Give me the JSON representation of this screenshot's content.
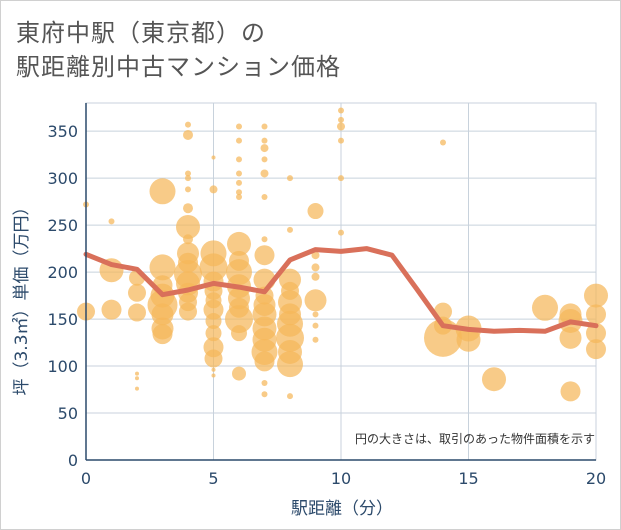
{
  "chart_data": {
    "type": "scatter",
    "title": [
      "東府中駅（東京都）の",
      "駅距離別中古マンション価格"
    ],
    "xlabel": "駅距離（分）",
    "ylabel": "坪（3.3㎡）単価（万円）",
    "xlim": [
      0,
      20
    ],
    "ylim": [
      0,
      380
    ],
    "xticks": [
      "0",
      "5",
      "10",
      "15",
      "20"
    ],
    "yticks": [
      "0",
      "50",
      "100",
      "150",
      "200",
      "250",
      "300",
      "350"
    ],
    "annotation": "円の大きさは、取引のあった物件面積を示す",
    "grid": true,
    "colors": {
      "bubble": "#f5b75a",
      "line": "#d9705a",
      "grid": "#c8d2dc",
      "axis": "#2c4a6b"
    },
    "average_line": {
      "x": [
        0,
        1,
        2,
        3,
        4,
        5,
        6,
        7,
        8,
        9,
        10,
        11,
        12,
        13,
        14,
        15,
        16,
        17,
        18,
        19,
        20
      ],
      "y": [
        219,
        208,
        203,
        176,
        181,
        188,
        184,
        179,
        213,
        224,
        222,
        225,
        218,
        181,
        143,
        139,
        137,
        138,
        137,
        147,
        143
      ]
    },
    "points": [
      {
        "x": 0,
        "y": 272,
        "s": 3
      },
      {
        "x": 0,
        "y": 158,
        "s": 9
      },
      {
        "x": 1,
        "y": 254,
        "s": 3
      },
      {
        "x": 1,
        "y": 202,
        "s": 12
      },
      {
        "x": 1,
        "y": 160,
        "s": 10
      },
      {
        "x": 2,
        "y": 194,
        "s": 8
      },
      {
        "x": 2,
        "y": 178,
        "s": 9
      },
      {
        "x": 2,
        "y": 157,
        "s": 9
      },
      {
        "x": 2,
        "y": 92,
        "s": 2
      },
      {
        "x": 2,
        "y": 87,
        "s": 2
      },
      {
        "x": 2,
        "y": 76,
        "s": 2
      },
      {
        "x": 3,
        "y": 286,
        "s": 13
      },
      {
        "x": 3,
        "y": 205,
        "s": 13
      },
      {
        "x": 3,
        "y": 186,
        "s": 10
      },
      {
        "x": 3,
        "y": 175,
        "s": 12
      },
      {
        "x": 3,
        "y": 165,
        "s": 15
      },
      {
        "x": 3,
        "y": 155,
        "s": 11
      },
      {
        "x": 3,
        "y": 140,
        "s": 11
      },
      {
        "x": 3,
        "y": 134,
        "s": 10
      },
      {
        "x": 4,
        "y": 357,
        "s": 3
      },
      {
        "x": 4,
        "y": 346,
        "s": 5
      },
      {
        "x": 4,
        "y": 305,
        "s": 3
      },
      {
        "x": 4,
        "y": 300,
        "s": 3
      },
      {
        "x": 4,
        "y": 288,
        "s": 3
      },
      {
        "x": 4,
        "y": 268,
        "s": 5
      },
      {
        "x": 4,
        "y": 248,
        "s": 12
      },
      {
        "x": 4,
        "y": 235,
        "s": 5
      },
      {
        "x": 4,
        "y": 220,
        "s": 11
      },
      {
        "x": 4,
        "y": 210,
        "s": 10
      },
      {
        "x": 4,
        "y": 198,
        "s": 14
      },
      {
        "x": 4,
        "y": 188,
        "s": 12
      },
      {
        "x": 4,
        "y": 178,
        "s": 10
      },
      {
        "x": 4,
        "y": 168,
        "s": 9
      },
      {
        "x": 4,
        "y": 158,
        "s": 9
      },
      {
        "x": 5,
        "y": 322,
        "s": 2
      },
      {
        "x": 5,
        "y": 288,
        "s": 4
      },
      {
        "x": 5,
        "y": 220,
        "s": 13
      },
      {
        "x": 5,
        "y": 205,
        "s": 14
      },
      {
        "x": 5,
        "y": 190,
        "s": 10
      },
      {
        "x": 5,
        "y": 180,
        "s": 9
      },
      {
        "x": 5,
        "y": 170,
        "s": 8
      },
      {
        "x": 5,
        "y": 160,
        "s": 10
      },
      {
        "x": 5,
        "y": 148,
        "s": 8
      },
      {
        "x": 5,
        "y": 135,
        "s": 8
      },
      {
        "x": 5,
        "y": 120,
        "s": 10
      },
      {
        "x": 5,
        "y": 108,
        "s": 9
      },
      {
        "x": 5,
        "y": 96,
        "s": 2
      },
      {
        "x": 5,
        "y": 90,
        "s": 2
      },
      {
        "x": 6,
        "y": 355,
        "s": 3
      },
      {
        "x": 6,
        "y": 340,
        "s": 3
      },
      {
        "x": 6,
        "y": 320,
        "s": 3
      },
      {
        "x": 6,
        "y": 305,
        "s": 3
      },
      {
        "x": 6,
        "y": 295,
        "s": 3
      },
      {
        "x": 6,
        "y": 285,
        "s": 3
      },
      {
        "x": 6,
        "y": 280,
        "s": 3
      },
      {
        "x": 6,
        "y": 230,
        "s": 12
      },
      {
        "x": 6,
        "y": 212,
        "s": 10
      },
      {
        "x": 6,
        "y": 200,
        "s": 13
      },
      {
        "x": 6,
        "y": 185,
        "s": 12
      },
      {
        "x": 6,
        "y": 172,
        "s": 11
      },
      {
        "x": 6,
        "y": 162,
        "s": 10
      },
      {
        "x": 6,
        "y": 150,
        "s": 14
      },
      {
        "x": 6,
        "y": 135,
        "s": 8
      },
      {
        "x": 6,
        "y": 92,
        "s": 7
      },
      {
        "x": 7,
        "y": 355,
        "s": 3
      },
      {
        "x": 7,
        "y": 340,
        "s": 3
      },
      {
        "x": 7,
        "y": 332,
        "s": 4
      },
      {
        "x": 7,
        "y": 320,
        "s": 3
      },
      {
        "x": 7,
        "y": 305,
        "s": 4
      },
      {
        "x": 7,
        "y": 280,
        "s": 3
      },
      {
        "x": 7,
        "y": 235,
        "s": 3
      },
      {
        "x": 7,
        "y": 218,
        "s": 10
      },
      {
        "x": 7,
        "y": 192,
        "s": 11
      },
      {
        "x": 7,
        "y": 175,
        "s": 9
      },
      {
        "x": 7,
        "y": 165,
        "s": 11
      },
      {
        "x": 7,
        "y": 155,
        "s": 12
      },
      {
        "x": 7,
        "y": 140,
        "s": 12
      },
      {
        "x": 7,
        "y": 128,
        "s": 12
      },
      {
        "x": 7,
        "y": 115,
        "s": 13
      },
      {
        "x": 7,
        "y": 105,
        "s": 10
      },
      {
        "x": 7,
        "y": 82,
        "s": 3
      },
      {
        "x": 7,
        "y": 70,
        "s": 3
      },
      {
        "x": 8,
        "y": 300,
        "s": 3
      },
      {
        "x": 8,
        "y": 245,
        "s": 3
      },
      {
        "x": 8,
        "y": 192,
        "s": 11
      },
      {
        "x": 8,
        "y": 180,
        "s": 9
      },
      {
        "x": 8,
        "y": 168,
        "s": 12
      },
      {
        "x": 8,
        "y": 155,
        "s": 11
      },
      {
        "x": 8,
        "y": 145,
        "s": 13
      },
      {
        "x": 8,
        "y": 130,
        "s": 14
      },
      {
        "x": 8,
        "y": 115,
        "s": 12
      },
      {
        "x": 8,
        "y": 102,
        "s": 13
      },
      {
        "x": 8,
        "y": 68,
        "s": 3
      },
      {
        "x": 9,
        "y": 265,
        "s": 8
      },
      {
        "x": 9,
        "y": 218,
        "s": 4
      },
      {
        "x": 9,
        "y": 205,
        "s": 4
      },
      {
        "x": 9,
        "y": 195,
        "s": 4
      },
      {
        "x": 9,
        "y": 170,
        "s": 11
      },
      {
        "x": 9,
        "y": 155,
        "s": 3
      },
      {
        "x": 9,
        "y": 143,
        "s": 3
      },
      {
        "x": 9,
        "y": 128,
        "s": 3
      },
      {
        "x": 10,
        "y": 372,
        "s": 3
      },
      {
        "x": 10,
        "y": 362,
        "s": 3
      },
      {
        "x": 10,
        "y": 355,
        "s": 4
      },
      {
        "x": 10,
        "y": 340,
        "s": 3
      },
      {
        "x": 10,
        "y": 300,
        "s": 3
      },
      {
        "x": 10,
        "y": 242,
        "s": 3
      },
      {
        "x": 14,
        "y": 338,
        "s": 3
      },
      {
        "x": 14,
        "y": 158,
        "s": 9
      },
      {
        "x": 14,
        "y": 143,
        "s": 9
      },
      {
        "x": 14,
        "y": 130,
        "s": 19
      },
      {
        "x": 15,
        "y": 140,
        "s": 13
      },
      {
        "x": 15,
        "y": 128,
        "s": 12
      },
      {
        "x": 16,
        "y": 86,
        "s": 12
      },
      {
        "x": 18,
        "y": 162,
        "s": 13
      },
      {
        "x": 19,
        "y": 155,
        "s": 11
      },
      {
        "x": 19,
        "y": 148,
        "s": 12
      },
      {
        "x": 19,
        "y": 130,
        "s": 11
      },
      {
        "x": 19,
        "y": 73,
        "s": 10
      },
      {
        "x": 20,
        "y": 175,
        "s": 12
      },
      {
        "x": 20,
        "y": 155,
        "s": 10
      },
      {
        "x": 20,
        "y": 135,
        "s": 10
      },
      {
        "x": 20,
        "y": 118,
        "s": 10
      }
    ]
  }
}
